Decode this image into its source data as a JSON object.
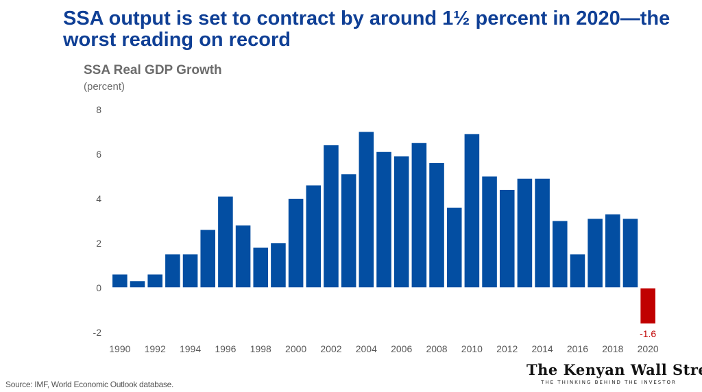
{
  "headline": "SSA output is set to contract by around 1½ percent in 2020—the worst reading on record",
  "chart_data": {
    "type": "bar",
    "title": "SSA Real GDP Growth",
    "ylabel": "(percent)",
    "xlabel": "",
    "ylim": [
      -2,
      8
    ],
    "yticks": [
      -2,
      0,
      2,
      4,
      6,
      8
    ],
    "categories": [
      "1990",
      "1991",
      "1992",
      "1993",
      "1994",
      "1995",
      "1996",
      "1997",
      "1998",
      "1999",
      "2000",
      "2001",
      "2002",
      "2003",
      "2004",
      "2005",
      "2006",
      "2007",
      "2008",
      "2009",
      "2010",
      "2011",
      "2012",
      "2013",
      "2014",
      "2015",
      "2016",
      "2017",
      "2018",
      "2019",
      "2020"
    ],
    "xtick_labels": [
      "1990",
      "1992",
      "1994",
      "1996",
      "1998",
      "2000",
      "2002",
      "2004",
      "2006",
      "2008",
      "2010",
      "2012",
      "2014",
      "2016",
      "2018",
      "2020"
    ],
    "values": [
      0.6,
      0.3,
      0.6,
      1.5,
      1.5,
      2.6,
      4.1,
      2.8,
      1.8,
      2.0,
      4.0,
      4.6,
      6.4,
      5.1,
      7.0,
      6.1,
      5.9,
      6.5,
      5.6,
      3.6,
      6.9,
      5.0,
      4.4,
      4.9,
      4.9,
      3.0,
      1.5,
      3.1,
      3.3,
      3.1,
      -1.6
    ],
    "annotation": "-1.6",
    "colors": {
      "bar": "#034ea2",
      "highlight": "#c00000",
      "axis_text": "#595959"
    }
  },
  "source": "Source: IMF, World Economic Outlook database.",
  "logo": {
    "name": "The Kenyan Wall Street",
    "tagline": "THE THINKING BEHIND THE INVESTOR"
  }
}
